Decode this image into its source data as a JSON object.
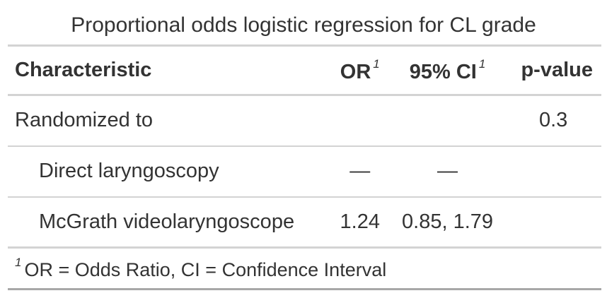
{
  "title": "Proportional odds logistic regression for CL grade",
  "table": {
    "headers": {
      "characteristic": "Characteristic",
      "or": "OR",
      "or_footnote_mark": "1",
      "ci": "95% CI",
      "ci_footnote_mark": "1",
      "pvalue": "p-value"
    },
    "rows": [
      {
        "label": "Randomized to",
        "or": "",
        "ci": "",
        "pvalue": "0.3"
      },
      {
        "label": "Direct laryngoscopy",
        "or": "—",
        "ci": "—",
        "pvalue": ""
      },
      {
        "label": "McGrath videolaryngoscope",
        "or": "1.24",
        "ci": "0.85, 1.79",
        "pvalue": ""
      }
    ],
    "footnote": {
      "mark": "1",
      "text": "OR = Odds Ratio, CI = Confidence Interval"
    }
  }
}
